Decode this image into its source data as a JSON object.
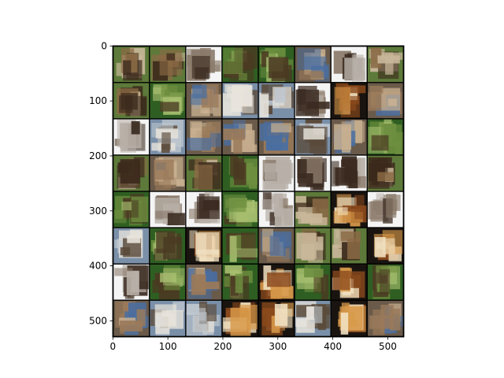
{
  "chart_data": {
    "type": "image",
    "xlim": [
      -0.5,
      529.5
    ],
    "ylim": [
      529.5,
      -0.5
    ],
    "xticks": [
      0,
      100,
      200,
      300,
      400,
      500
    ],
    "yticks": [
      0,
      100,
      200,
      300,
      400,
      500
    ]
  }
}
